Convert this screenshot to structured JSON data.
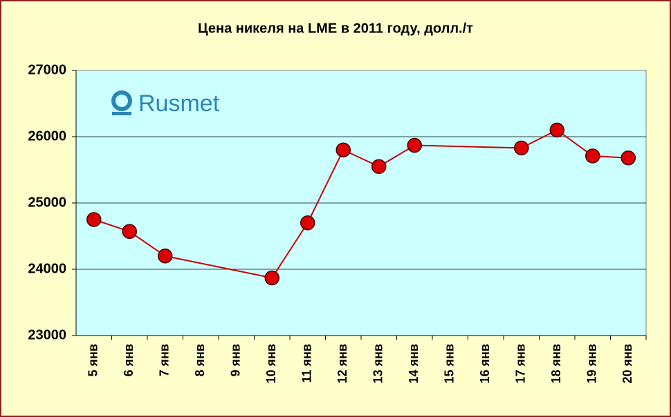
{
  "chart_data": {
    "type": "line",
    "title": "Цена никеля на LME в 2011 году, долл./т",
    "watermark": "Rusmet",
    "categories": [
      "5 янв",
      "6 янв",
      "7 янв",
      "8 янв",
      "9 янв",
      "10 янв",
      "11 янв",
      "12 янв",
      "13 янв",
      "14 янв",
      "15 янв",
      "16 янв",
      "17 янв",
      "18 янв",
      "19 янв",
      "20 янв"
    ],
    "values": [
      24750,
      24570,
      24200,
      null,
      null,
      23870,
      24700,
      25800,
      25550,
      25870,
      null,
      null,
      25830,
      26100,
      25710,
      25680
    ],
    "color": "#cc0000",
    "marker_color": "#dd0000",
    "span_gaps": true,
    "ylim": [
      23000,
      27000
    ],
    "yticks": [
      23000,
      24000,
      25000,
      26000,
      27000
    ],
    "grid": true
  }
}
